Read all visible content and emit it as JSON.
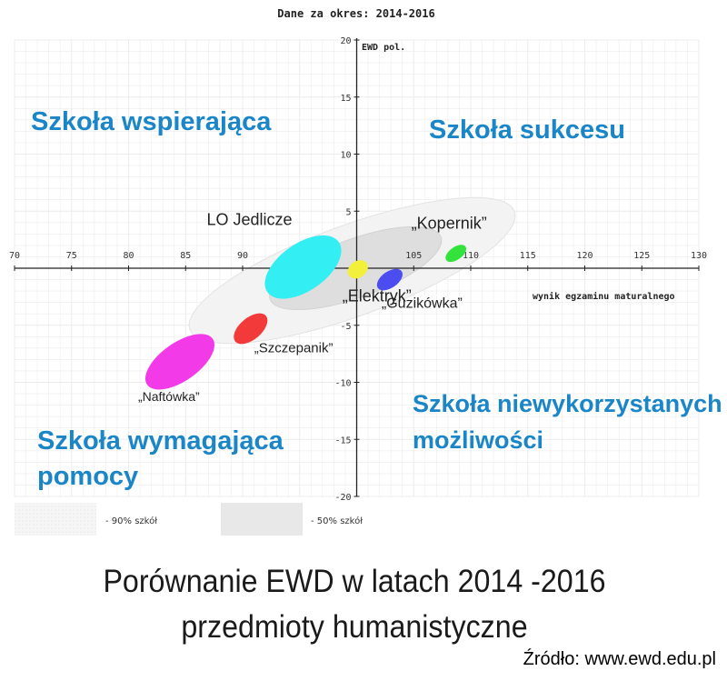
{
  "chart_data": {
    "type": "scatter",
    "title": "Dane za okres: 2014-2016",
    "xlabel": "wynik egzaminu maturalnego",
    "ylabel": "EWD pol.",
    "xlim": [
      70,
      130
    ],
    "ylim": [
      -20,
      20
    ],
    "x_ticks": [
      70,
      75,
      80,
      85,
      90,
      95,
      100,
      105,
      110,
      115,
      120,
      125,
      130
    ],
    "y_ticks": [
      20,
      15,
      10,
      5,
      -5,
      -10,
      -15,
      -20
    ],
    "grid": true,
    "quadrant_labels": {
      "top_left": "Szkoła wspierająca",
      "top_right": "Szkoła sukcesu",
      "bottom_right": [
        "Szkoła niewykorzystanych",
        "możliwości"
      ],
      "bottom_left": [
        "Szkoła wymagająca",
        "pomocy"
      ]
    },
    "series": [
      {
        "name": "LO Jedlicze",
        "x": 95.3,
        "y": 0.1,
        "color": "#33eef2"
      },
      {
        "name": "„Elektryk”",
        "x": 100.1,
        "y": -0.1,
        "color": "#f2f03a"
      },
      {
        "name": "„Guzikówka”",
        "x": 102.9,
        "y": -1.0,
        "color": "#4b4df0"
      },
      {
        "name": "„Kopernik”",
        "x": 108.7,
        "y": 1.3,
        "color": "#33e23a"
      },
      {
        "name": "„Szczepanik”",
        "x": 90.7,
        "y": -5.3,
        "color": "#f23a3a"
      },
      {
        "name": "„Naftówka”",
        "x": 84.5,
        "y": -8.2,
        "color": "#f23ae8"
      }
    ],
    "legend": [
      {
        "label": "- 90% szkół"
      },
      {
        "label": "- 50% szkół"
      }
    ]
  },
  "caption": {
    "line1": "Porównanie EWD w latach 2014 -2016",
    "line2": "przedmioty humanistyczne",
    "source": "Źródło: www.ewd.edu.pl"
  }
}
